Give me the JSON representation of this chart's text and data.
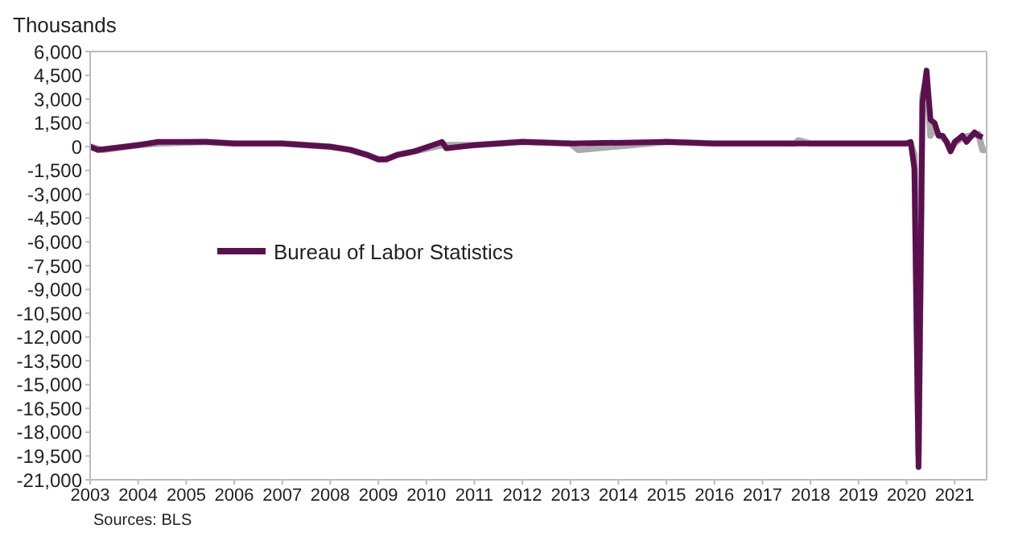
{
  "chart_data": {
    "type": "line",
    "ylabel": "Thousands",
    "annotations": [
      "Sources: BLS"
    ],
    "xlim": [
      "2003-01",
      "2021-09"
    ],
    "xticks": [
      "2003",
      "2004",
      "2005",
      "2006",
      "2007",
      "2008",
      "2009",
      "2010",
      "2011",
      "2012",
      "2013",
      "2014",
      "2015",
      "2016",
      "2017",
      "2018",
      "2019",
      "2020",
      "2021"
    ],
    "ylim": [
      -21000,
      6000
    ],
    "yticks": [
      {
        "value": 6000,
        "label": "6,000"
      },
      {
        "value": 4500,
        "label": "4,500"
      },
      {
        "value": 3000,
        "label": "3,000"
      },
      {
        "value": 1500,
        "label": "1,500"
      },
      0,
      {
        "value": -1500,
        "label": "-1,500"
      },
      {
        "value": -3000,
        "label": "-3,000"
      },
      {
        "value": -4500,
        "label": "-4,500"
      },
      {
        "value": -6000,
        "label": "-6,000"
      },
      {
        "value": -7500,
        "label": "-7,500"
      },
      {
        "value": -9000,
        "label": "-9,000"
      },
      {
        "value": -10500,
        "label": "-10,500"
      },
      {
        "value": -12000,
        "label": "-12,000"
      },
      {
        "value": -13500,
        "label": "-13,500"
      },
      {
        "value": -15000,
        "label": "-15,000"
      },
      {
        "value": -16500,
        "label": "-16,500"
      },
      {
        "value": -18000,
        "label": "-18,000"
      },
      {
        "value": -19500,
        "label": "-19,500"
      },
      {
        "value": -21000,
        "label": "-21,000"
      }
    ],
    "legend": "left",
    "series": [
      {
        "color": "#aaaaaa",
        "x": [
          "2003-01",
          "2003-04",
          "2004-01",
          "2004-06",
          "2005-06",
          "2006-01",
          "2007-01",
          "2008-01",
          "2008-06",
          "2008-10",
          "2009-01",
          "2009-03",
          "2009-06",
          "2009-10",
          "2010-05",
          "2011-01",
          "2012-01",
          "2013-01",
          "2013-03",
          "2015-01",
          "2016-01",
          "2017-01",
          "2017-09",
          "2017-10",
          "2018-01",
          "2019-01",
          "2020-01",
          "2020-02",
          "2020-03",
          "2020-04",
          "2020-05",
          "2020-06",
          "2020-07",
          "2020-08",
          "2020-09",
          "2020-10",
          "2020-11",
          "2020-12",
          "2021-01",
          "2021-03",
          "2021-05",
          "2021-07",
          "2021-08",
          "2021-09"
        ],
        "values": [
          0,
          -200,
          100,
          200,
          300,
          200,
          200,
          0,
          -200,
          -500,
          -800,
          -800,
          -500,
          -300,
          100,
          100,
          300,
          200,
          -200,
          300,
          200,
          200,
          200,
          400,
          200,
          200,
          200,
          200,
          -500,
          -19400,
          3200,
          4300,
          700,
          1200,
          700,
          600,
          300,
          -200,
          200,
          600,
          700,
          800,
          -200,
          -200
        ]
      },
      {
        "name": "Bureau of Labor Statistics",
        "color": "#5c0f4e",
        "x": [
          "2003-01",
          "2003-03",
          "2004-01",
          "2004-06",
          "2005-06",
          "2006-01",
          "2007-01",
          "2008-01",
          "2008-06",
          "2008-10",
          "2009-01",
          "2009-03",
          "2009-06",
          "2009-10",
          "2010-05",
          "2010-06",
          "2011-01",
          "2012-01",
          "2013-01",
          "2015-01",
          "2016-01",
          "2017-01",
          "2018-01",
          "2019-01",
          "2020-01",
          "2020-02",
          "2020-03",
          "2020-04",
          "2020-05",
          "2020-06",
          "2020-07",
          "2020-08",
          "2020-09",
          "2020-10",
          "2020-11",
          "2020-12",
          "2021-01",
          "2021-02",
          "2021-03",
          "2021-04",
          "2021-05",
          "2021-06",
          "2021-07",
          "2021-08"
        ],
        "values": [
          0,
          -200,
          100,
          300,
          300,
          200,
          200,
          0,
          -200,
          -500,
          -800,
          -800,
          -500,
          -300,
          300,
          -100,
          100,
          300,
          200,
          300,
          200,
          200,
          200,
          200,
          200,
          300,
          -1400,
          -20200,
          2800,
          4800,
          1700,
          1500,
          700,
          700,
          300,
          -300,
          300,
          500,
          700,
          300,
          600,
          900,
          700,
          600
        ]
      }
    ]
  }
}
